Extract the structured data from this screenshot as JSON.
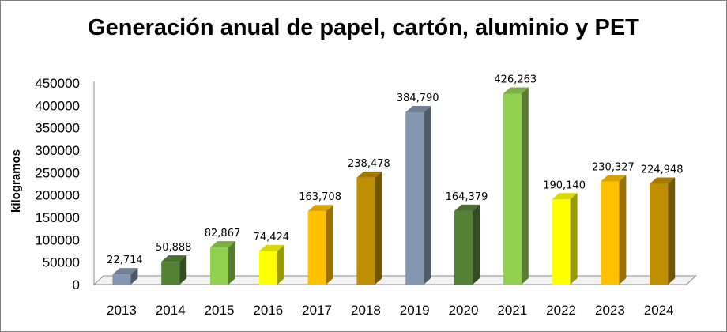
{
  "chart_data": {
    "type": "bar",
    "title": "Generación anual de papel, cartón, aluminio y PET",
    "xlabel": "",
    "ylabel": "kilogramos",
    "ylim": [
      0,
      450000
    ],
    "yticks": [
      "0",
      "50000",
      "100000",
      "150000",
      "200000",
      "250000",
      "300000",
      "350000",
      "400000",
      "450000"
    ],
    "categories": [
      "2013",
      "2014",
      "2015",
      "2016",
      "2017",
      "2018",
      "2019",
      "2020",
      "2021",
      "2022",
      "2023",
      "2024"
    ],
    "values": [
      22714,
      50888,
      82867,
      74424,
      163708,
      238478,
      384790,
      164379,
      426263,
      190140,
      230327,
      224948
    ],
    "value_labels": [
      "22,714",
      "50,888",
      "82,867",
      "74,424",
      "163,708",
      "238,478",
      "384,790",
      "164,379",
      "426,263",
      "190,140",
      "230,327",
      "224,948"
    ],
    "colors": [
      "#8497b0",
      "#548235",
      "#92d050",
      "#ffff00",
      "#ffc000",
      "#bf8f00",
      "#8497b0",
      "#548235",
      "#92d050",
      "#ffff00",
      "#ffc000",
      "#bf8f00"
    ],
    "grid": false,
    "legend": "none",
    "style": "3d-column"
  }
}
